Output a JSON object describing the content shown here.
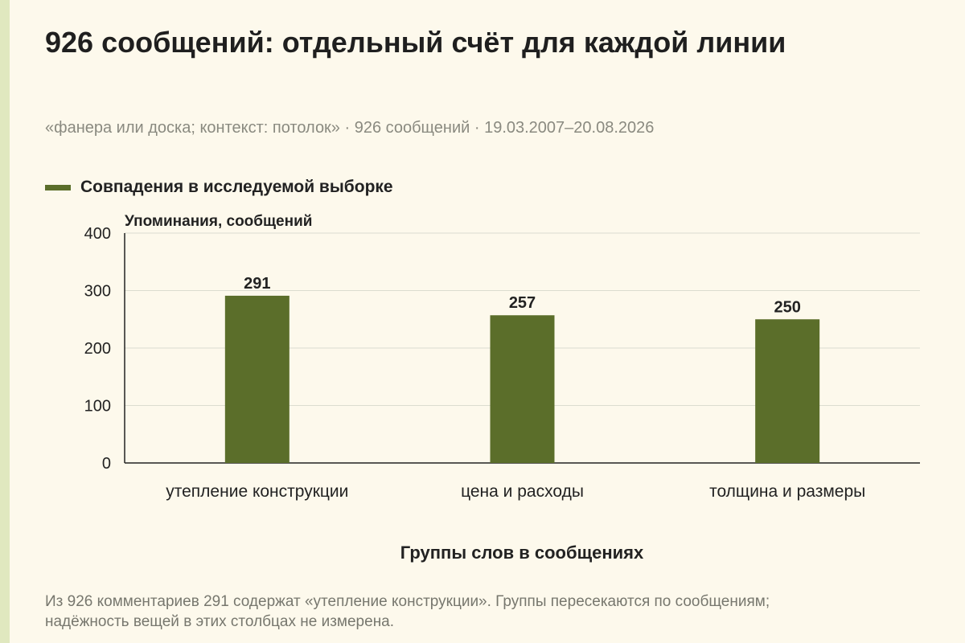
{
  "title": "926 сообщений: отдельный счёт для каждой линии",
  "subtitle": "«фанера или доска; контекст: потолок» · 926 сообщений · 19.03.2007–20.08.2026",
  "footnote": "Из 926 комментариев 291 содержат «утепление конструкции». Группы пересекаются по сообщениям; надёжность вещей в этих столбцах не измерена.",
  "colors": {
    "bar": "#5b6e2a",
    "grid": "#dcdcd0",
    "axis": "#222222",
    "background": "#fdf9ec"
  },
  "chart_data": {
    "type": "bar",
    "categories": [
      "утепление конструкции",
      "цена и расходы",
      "толщина и размеры"
    ],
    "series": [
      {
        "name": "Совпадения в исследуемой выборке",
        "values": [
          291,
          257,
          250
        ]
      }
    ],
    "data_labels": [
      "291",
      "257",
      "250"
    ],
    "ylabel": "Упоминания, сообщений",
    "xlabel": "Группы слов в сообщениях",
    "ylim": [
      0,
      400
    ],
    "yticks": [
      0,
      100,
      200,
      300,
      400
    ],
    "ytick_labels": [
      "0",
      "100",
      "200",
      "300",
      "400"
    ],
    "grid": true,
    "legend_position": "top-left"
  }
}
